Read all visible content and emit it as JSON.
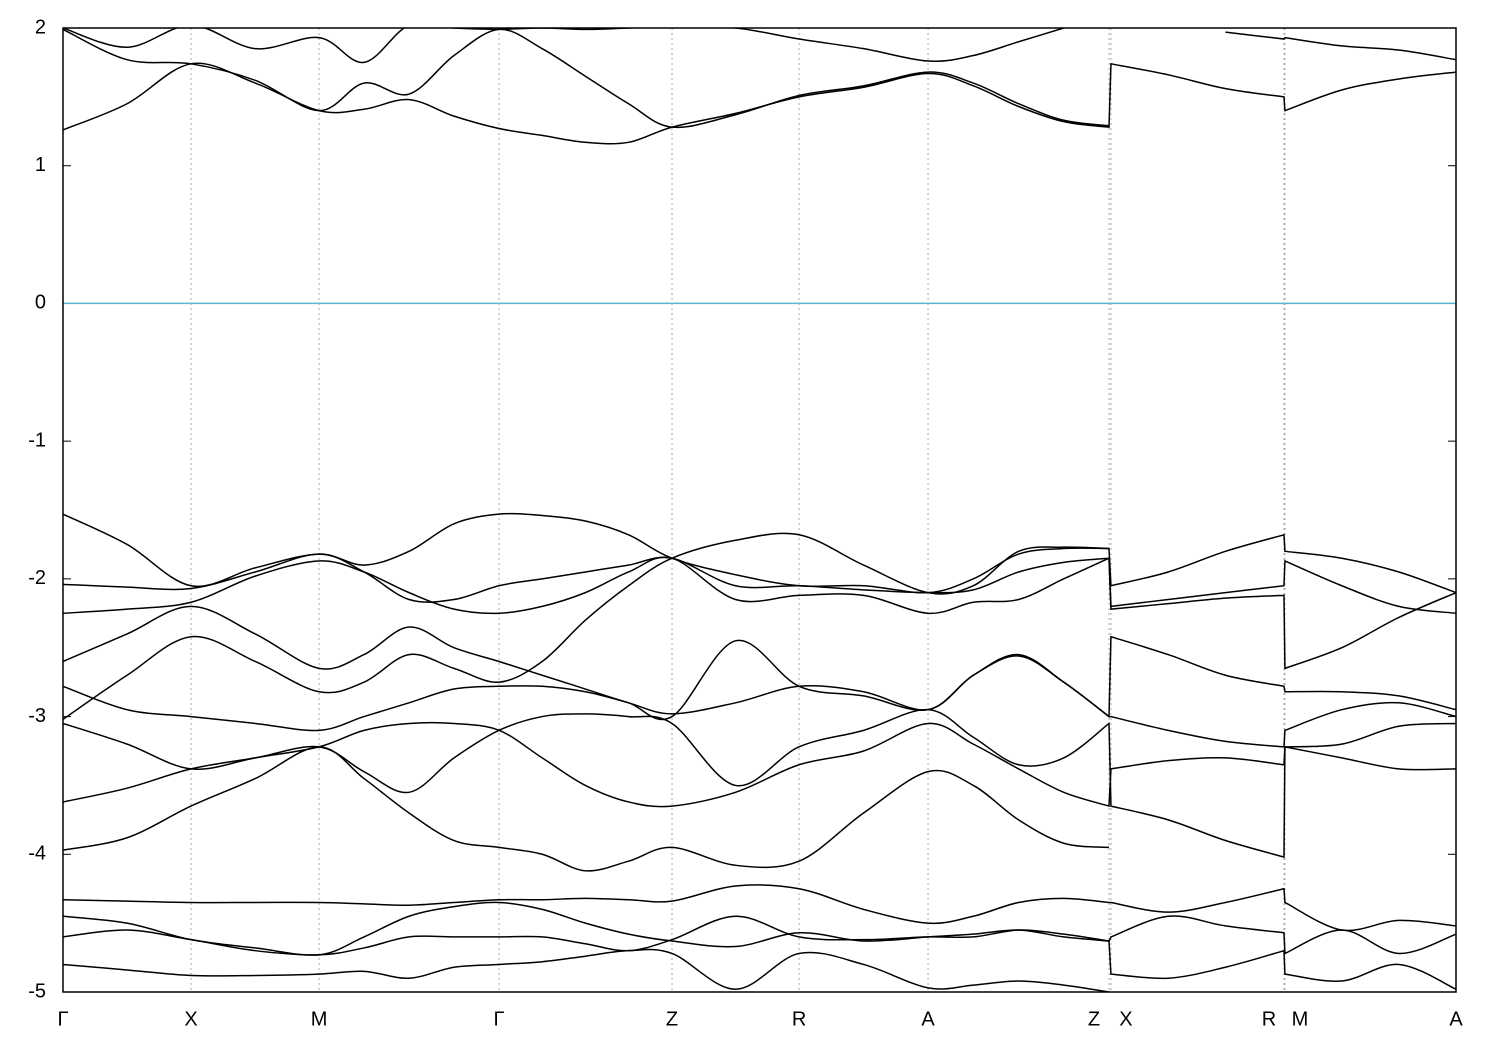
{
  "chart_data": {
    "type": "line",
    "color": "#000000",
    "xlim": [
      0,
      1
    ],
    "ylim": [
      -5,
      2
    ],
    "yticks": [
      -5,
      -4,
      -3,
      -2,
      -1,
      0,
      1,
      2
    ],
    "xticks": [
      {
        "value": 0,
        "label": "Γ"
      },
      {
        "value": 0.0919,
        "label": "X"
      },
      {
        "value": 0.1838,
        "label": "M"
      },
      {
        "value": 0.313,
        "label": "Γ"
      },
      {
        "value": 0.4372,
        "label": "Z"
      },
      {
        "value": 0.5284,
        "label": "R"
      },
      {
        "value": 0.621,
        "label": "A"
      },
      {
        "value": 0.7509,
        "label": "Z"
      },
      {
        "value": 0.7523,
        "label": "X"
      },
      {
        "value": 0.8765,
        "label": "R"
      },
      {
        "value": 0.8772,
        "label": "M"
      },
      {
        "value": 1,
        "label": "A"
      }
    ],
    "grid": "x",
    "hline": {
      "value": 0,
      "color": "#5ab4cc"
    },
    "x": [
      0,
      0.046,
      0.0919,
      0.138,
      0.1838,
      0.2161,
      0.2484,
      0.2807,
      0.313,
      0.344,
      0.375,
      0.406,
      0.4372,
      0.4828,
      0.5284,
      0.5747,
      0.621,
      0.6535,
      0.686,
      0.7184,
      0.7509,
      0.7523,
      0.7934,
      0.8345,
      0.8765,
      0.8772,
      0.918,
      0.959,
      1.0
    ],
    "series": [
      {
        "values": [
          1.26,
          1.45,
          1.74,
          1.6,
          1.4,
          1.41,
          1.48,
          1.36,
          1.27,
          1.22,
          1.17,
          1.17,
          1.28,
          1.38,
          1.5,
          1.57,
          1.67,
          1.58,
          1.43,
          1.32,
          1.28,
          1.74,
          1.66,
          1.56,
          1.5,
          1.4,
          1.55,
          1.63,
          1.68
        ]
      },
      {
        "values": [
          1.99,
          1.77,
          1.74,
          1.62,
          1.4,
          1.6,
          1.52,
          1.8,
          1.99,
          1.85,
          1.65,
          1.45,
          1.28,
          1.37,
          1.51,
          1.58,
          1.68,
          1.6,
          1.45,
          1.33,
          1.29,
          null,
          null,
          1.97,
          1.92,
          1.93,
          1.87,
          1.84,
          1.77
        ]
      },
      {
        "values": [
          2.0,
          1.86,
          2.02,
          1.85,
          1.93,
          1.75,
          2.02,
          2.0,
          1.99,
          2.0,
          1.99,
          2.0,
          2.01,
          2.0,
          1.92,
          1.85,
          1.76,
          1.8,
          1.9,
          2.0,
          null,
          null,
          null,
          null,
          null,
          null,
          null,
          null,
          null
        ]
      },
      {
        "values": [
          -1.53,
          -1.75,
          -2.05,
          -1.92,
          -1.82,
          -1.9,
          -1.8,
          -1.6,
          -1.53,
          -1.54,
          -1.58,
          -1.68,
          -1.85,
          -1.97,
          -2.05,
          -2.05,
          -2.1,
          -2.0,
          -1.82,
          -1.78,
          -1.78,
          -2.05,
          -1.95,
          -1.8,
          -1.68,
          -1.8,
          -1.85,
          -1.95,
          -2.1
        ]
      },
      {
        "values": [
          -2.04,
          -2.06,
          -2.07,
          -1.95,
          -1.82,
          -1.95,
          -2.15,
          -2.15,
          -2.05,
          -2.0,
          -1.95,
          -1.9,
          -1.85,
          -2.05,
          -2.05,
          -2.08,
          -2.1,
          -2.08,
          -1.95,
          -1.88,
          -1.85,
          -2.2,
          -2.15,
          -2.1,
          -2.05,
          -1.87,
          -2.05,
          -2.2,
          -2.25
        ]
      },
      {
        "values": [
          -2.25,
          -2.22,
          -2.17,
          -1.98,
          -1.87,
          -1.95,
          -2.1,
          -2.22,
          -2.25,
          -2.2,
          -2.1,
          -1.95,
          -1.85,
          -2.15,
          -2.12,
          -2.12,
          -2.25,
          -2.17,
          -2.15,
          -2.0,
          -1.85,
          -2.22,
          -2.18,
          -2.14,
          -2.12,
          -2.65,
          -2.5,
          -2.28,
          -2.1
        ]
      },
      {
        "values": [
          -2.6,
          -2.4,
          -2.2,
          -2.4,
          -2.65,
          -2.55,
          -2.35,
          -2.5,
          -2.6,
          -2.7,
          -2.8,
          -2.9,
          -2.98,
          -2.9,
          -2.78,
          -2.82,
          -2.95,
          -2.7,
          -2.55,
          -2.75,
          -3.0,
          -2.42,
          -2.55,
          -2.7,
          -2.78,
          -2.82,
          -2.82,
          -2.85,
          -2.95
        ]
      },
      {
        "values": [
          -2.78,
          -2.95,
          -3.0,
          -3.05,
          -3.1,
          -3.0,
          -2.9,
          -2.8,
          -2.78,
          -2.78,
          -2.82,
          -2.9,
          -3.0,
          -2.45,
          -2.78,
          -2.85,
          -2.95,
          -2.7,
          -2.56,
          -2.75,
          -3.0,
          -3.0,
          -3.1,
          -3.18,
          -3.22,
          -3.1,
          -2.95,
          -2.9,
          -3.0
        ]
      },
      {
        "values": [
          -3.05,
          -3.2,
          -3.38,
          -3.3,
          -3.22,
          -3.1,
          -3.05,
          -3.05,
          -3.1,
          -3.3,
          -3.5,
          -3.62,
          -3.65,
          -3.55,
          -3.35,
          -3.25,
          -3.05,
          -3.2,
          -3.38,
          -3.55,
          -3.65,
          -3.38,
          -3.32,
          -3.3,
          -3.35,
          -3.22,
          -3.2,
          -3.07,
          -3.05
        ]
      },
      {
        "values": [
          -3.62,
          -3.52,
          -3.38,
          -3.3,
          -3.22,
          -3.4,
          -3.55,
          -3.3,
          -3.1,
          -3.0,
          -2.98,
          -3.0,
          -3.05,
          -3.5,
          -3.22,
          -3.1,
          -2.95,
          -3.15,
          -3.35,
          -3.3,
          -3.05,
          -3.65,
          -3.75,
          -3.9,
          -4.02,
          -3.22,
          -3.3,
          -3.38,
          -3.38
        ]
      },
      {
        "values": [
          -3.97,
          -3.88,
          -3.65,
          -3.45,
          -3.22,
          -3.45,
          -3.7,
          -3.9,
          -3.95,
          -4.0,
          -4.12,
          -4.05,
          -3.95,
          -4.08,
          -4.05,
          -3.7,
          -3.4,
          -3.5,
          -3.75,
          -3.92,
          -3.95,
          null,
          null,
          null,
          null,
          null,
          null,
          null,
          null
        ]
      },
      {
        "values": [
          -3.02,
          -2.7,
          -2.42,
          -2.6,
          -2.82,
          -2.75,
          -2.55,
          -2.65,
          -2.75,
          -2.6,
          -2.3,
          -2.05,
          -1.85,
          -1.72,
          -1.68,
          -1.9,
          -2.1,
          -2.05,
          -1.8,
          -1.77,
          -1.78,
          null,
          null,
          null,
          null,
          null,
          null,
          null,
          null
        ]
      },
      {
        "values": [
          -4.33,
          -4.34,
          -4.35,
          -4.35,
          -4.35,
          -4.36,
          -4.37,
          -4.35,
          -4.33,
          -4.33,
          -4.32,
          -4.33,
          -4.34,
          -4.23,
          -4.25,
          -4.4,
          -4.5,
          -4.45,
          -4.35,
          -4.32,
          -4.35,
          -4.35,
          -4.42,
          -4.35,
          -4.25,
          -4.35,
          -4.55,
          -4.48,
          -4.52
        ]
      },
      {
        "values": [
          -4.45,
          -4.5,
          -4.62,
          -4.68,
          -4.73,
          -4.6,
          -4.45,
          -4.38,
          -4.35,
          -4.4,
          -4.5,
          -4.58,
          -4.63,
          -4.67,
          -4.57,
          -4.63,
          -4.6,
          -4.58,
          -4.55,
          -4.6,
          -4.63,
          -4.6,
          -4.45,
          -4.52,
          -4.57,
          -4.72,
          -4.55,
          -4.72,
          -4.58
        ]
      },
      {
        "values": [
          -4.6,
          -4.55,
          -4.62,
          -4.7,
          -4.73,
          -4.68,
          -4.6,
          -4.6,
          -4.6,
          -4.6,
          -4.65,
          -4.7,
          -4.62,
          -4.45,
          -4.6,
          -4.62,
          -4.6,
          -4.6,
          -4.55,
          -4.58,
          -4.63,
          -4.87,
          -4.9,
          -4.82,
          -4.7,
          -4.87,
          -4.92,
          -4.8,
          -4.98
        ]
      },
      {
        "values": [
          -4.8,
          -4.84,
          -4.88,
          -4.88,
          -4.87,
          -4.85,
          -4.9,
          -4.82,
          -4.8,
          -4.78,
          -4.74,
          -4.7,
          -4.72,
          -4.98,
          -4.72,
          -4.8,
          -4.97,
          -4.95,
          -4.92,
          -4.95,
          -5.0,
          null,
          null,
          null,
          null,
          null,
          null,
          null,
          null
        ]
      }
    ]
  }
}
